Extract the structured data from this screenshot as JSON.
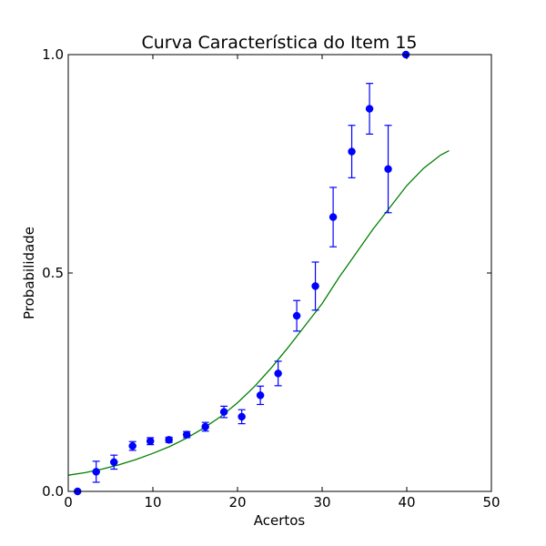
{
  "chart_data": {
    "type": "scatter",
    "title": "Curva Característica do Item 15",
    "xlabel": "Acertos",
    "ylabel": "Probabilidade",
    "xlim": [
      0,
      50
    ],
    "ylim": [
      0.0,
      1.0
    ],
    "xticks": [
      0,
      10,
      20,
      30,
      40,
      50
    ],
    "xtick_labels": [
      "0",
      "10",
      "20",
      "30",
      "40",
      "50"
    ],
    "yticks": [
      0.0,
      0.5,
      1.0
    ],
    "ytick_labels": [
      "0.0",
      "0.5",
      "1.0"
    ],
    "grid": false,
    "colors": {
      "points": "#0000ff",
      "curve": "#008000"
    },
    "series": [
      {
        "kind": "points_with_errorbars",
        "points": [
          {
            "x": 1.1,
            "y": 0.0,
            "err": 0.0
          },
          {
            "x": 3.3,
            "y": 0.045,
            "err": 0.024
          },
          {
            "x": 5.4,
            "y": 0.067,
            "err": 0.016
          },
          {
            "x": 7.6,
            "y": 0.104,
            "err": 0.01
          },
          {
            "x": 9.7,
            "y": 0.115,
            "err": 0.008
          },
          {
            "x": 11.9,
            "y": 0.118,
            "err": 0.006
          },
          {
            "x": 14.0,
            "y": 0.13,
            "err": 0.007
          },
          {
            "x": 16.2,
            "y": 0.148,
            "err": 0.01
          },
          {
            "x": 18.4,
            "y": 0.182,
            "err": 0.013
          },
          {
            "x": 20.5,
            "y": 0.171,
            "err": 0.016
          },
          {
            "x": 22.7,
            "y": 0.22,
            "err": 0.021
          },
          {
            "x": 24.8,
            "y": 0.27,
            "err": 0.028
          },
          {
            "x": 27.0,
            "y": 0.402,
            "err": 0.035
          },
          {
            "x": 29.2,
            "y": 0.47,
            "err": 0.055
          },
          {
            "x": 31.3,
            "y": 0.628,
            "err": 0.068
          },
          {
            "x": 33.5,
            "y": 0.778,
            "err": 0.06
          },
          {
            "x": 35.6,
            "y": 0.876,
            "err": 0.058
          },
          {
            "x": 37.8,
            "y": 0.738,
            "err": 0.1
          },
          {
            "x": 39.9,
            "y": 1.0,
            "err": 0.0
          }
        ]
      },
      {
        "kind": "curve",
        "x": [
          0,
          2,
          4,
          6,
          8,
          10,
          12,
          14,
          16,
          18,
          20,
          22,
          24,
          26,
          28,
          30,
          32,
          34,
          36,
          38,
          40,
          42,
          44,
          45
        ],
        "y": [
          0.037,
          0.043,
          0.051,
          0.061,
          0.073,
          0.087,
          0.103,
          0.122,
          0.145,
          0.171,
          0.203,
          0.24,
          0.283,
          0.33,
          0.38,
          0.43,
          0.49,
          0.545,
          0.6,
          0.65,
          0.7,
          0.74,
          0.77,
          0.78
        ]
      }
    ]
  }
}
